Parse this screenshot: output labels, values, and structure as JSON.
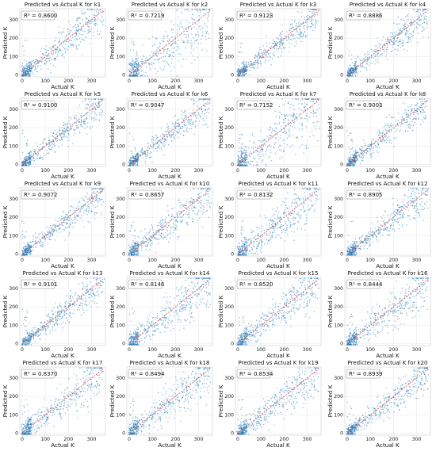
{
  "figure": {
    "layout": {
      "rows": 5,
      "cols": 4
    }
  },
  "chart_data": [
    {
      "type": "scatter",
      "title": "Predicted vs Actual K for k1",
      "xlabel": "Actual K",
      "ylabel": "Predicted K",
      "annotation": "R² = 0.8600",
      "r2": 0.86,
      "xlim": [
        -10,
        360
      ],
      "ylim": [
        -10,
        360
      ],
      "xticks": [
        0,
        100,
        200,
        300
      ],
      "yticks": [
        0,
        100,
        200,
        300
      ],
      "grid": true,
      "reference_line": "y=x",
      "colors": {
        "points": "#1f77b4",
        "reference": "#e05050"
      }
    },
    {
      "type": "scatter",
      "title": "Predicted vs Actual K for k2",
      "xlabel": "Actual K",
      "ylabel": "Predicted K",
      "annotation": "R² = 0.7219",
      "r2": 0.7219,
      "xlim": [
        -10,
        360
      ],
      "ylim": [
        -10,
        360
      ],
      "xticks": [
        0,
        100,
        200,
        300
      ],
      "yticks": [
        0,
        100,
        200,
        300
      ],
      "grid": true,
      "reference_line": "y=x",
      "colors": {
        "points": "#1f77b4",
        "reference": "#e05050"
      }
    },
    {
      "type": "scatter",
      "title": "Predicted vs Actual K for k3",
      "xlabel": "Actual K",
      "ylabel": "Predicted K",
      "annotation": "R² = 0.9123",
      "r2": 0.9123,
      "xlim": [
        -10,
        360
      ],
      "ylim": [
        -10,
        360
      ],
      "xticks": [
        0,
        100,
        200,
        300
      ],
      "yticks": [
        0,
        100,
        200,
        300
      ],
      "grid": true,
      "reference_line": "y=x",
      "colors": {
        "points": "#1f77b4",
        "reference": "#e05050"
      }
    },
    {
      "type": "scatter",
      "title": "Predicted vs Actual K for k4",
      "xlabel": "Actual K",
      "ylabel": "Predicted K",
      "annotation": "R² = 0.8886",
      "r2": 0.8886,
      "xlim": [
        -10,
        360
      ],
      "ylim": [
        -10,
        360
      ],
      "xticks": [
        0,
        100,
        200,
        300
      ],
      "yticks": [
        0,
        100,
        200,
        300
      ],
      "grid": true,
      "reference_line": "y=x",
      "colors": {
        "points": "#1f77b4",
        "reference": "#e05050"
      }
    },
    {
      "type": "scatter",
      "title": "Predicted vs Actual K for k5",
      "xlabel": "Actual K",
      "ylabel": "Predicted K",
      "annotation": "R² = 0.9100",
      "r2": 0.91,
      "xlim": [
        -10,
        360
      ],
      "ylim": [
        -10,
        360
      ],
      "xticks": [
        0,
        100,
        200,
        300
      ],
      "yticks": [
        0,
        100,
        200,
        300
      ],
      "grid": true,
      "reference_line": "y=x",
      "colors": {
        "points": "#1f77b4",
        "reference": "#e05050"
      }
    },
    {
      "type": "scatter",
      "title": "Predicted vs Actual K for k6",
      "xlabel": "Actual K",
      "ylabel": "Predicted K",
      "annotation": "R² = 0.9047",
      "r2": 0.9047,
      "xlim": [
        -10,
        360
      ],
      "ylim": [
        -10,
        360
      ],
      "xticks": [
        0,
        100,
        200,
        300
      ],
      "yticks": [
        0,
        100,
        200,
        300
      ],
      "grid": true,
      "reference_line": "y=x",
      "colors": {
        "points": "#1f77b4",
        "reference": "#e05050"
      }
    },
    {
      "type": "scatter",
      "title": "Predicted vs Actual K for k7",
      "xlabel": "Actual K",
      "ylabel": "Predicted K",
      "annotation": "R² = 0.7152",
      "r2": 0.7152,
      "xlim": [
        -10,
        360
      ],
      "ylim": [
        -10,
        360
      ],
      "xticks": [
        0,
        100,
        200,
        300
      ],
      "yticks": [
        0,
        100,
        200,
        300
      ],
      "grid": true,
      "reference_line": "y=x",
      "colors": {
        "points": "#1f77b4",
        "reference": "#e05050"
      }
    },
    {
      "type": "scatter",
      "title": "Predicted vs Actual K for k8",
      "xlabel": "Actual K",
      "ylabel": "Predicted K",
      "annotation": "R² = 0.9003",
      "r2": 0.9003,
      "xlim": [
        -10,
        360
      ],
      "ylim": [
        -10,
        360
      ],
      "xticks": [
        0,
        100,
        200,
        300
      ],
      "yticks": [
        0,
        100,
        200,
        300
      ],
      "grid": true,
      "reference_line": "y=x",
      "colors": {
        "points": "#1f77b4",
        "reference": "#e05050"
      }
    },
    {
      "type": "scatter",
      "title": "Predicted vs Actual K for k9",
      "xlabel": "Actual K",
      "ylabel": "Predicted K",
      "annotation": "R² = 0.9072",
      "r2": 0.9072,
      "xlim": [
        -10,
        360
      ],
      "ylim": [
        -10,
        360
      ],
      "xticks": [
        0,
        100,
        200,
        300
      ],
      "yticks": [
        0,
        100,
        200,
        300
      ],
      "grid": true,
      "reference_line": "y=x",
      "colors": {
        "points": "#1f77b4",
        "reference": "#e05050"
      }
    },
    {
      "type": "scatter",
      "title": "Predicted vs Actual K for k10",
      "xlabel": "Actual K",
      "ylabel": "Predicted K",
      "annotation": "R² = 0.8657",
      "r2": 0.8657,
      "xlim": [
        -10,
        360
      ],
      "ylim": [
        -10,
        360
      ],
      "xticks": [
        0,
        100,
        200,
        300
      ],
      "yticks": [
        0,
        100,
        200,
        300
      ],
      "grid": true,
      "reference_line": "y=x",
      "colors": {
        "points": "#1f77b4",
        "reference": "#e05050"
      }
    },
    {
      "type": "scatter",
      "title": "Predicted vs Actual K for k11",
      "xlabel": "Actual K",
      "ylabel": "Predicted K",
      "annotation": "R² = 0.8132",
      "r2": 0.8132,
      "xlim": [
        -10,
        360
      ],
      "ylim": [
        -10,
        360
      ],
      "xticks": [
        0,
        100,
        200,
        300
      ],
      "yticks": [
        0,
        100,
        200,
        300
      ],
      "grid": true,
      "reference_line": "y=x",
      "colors": {
        "points": "#1f77b4",
        "reference": "#e05050"
      }
    },
    {
      "type": "scatter",
      "title": "Predicted vs Actual K for k12",
      "xlabel": "Actual K",
      "ylabel": "Predicted K",
      "annotation": "R² = 0.8905",
      "r2": 0.8905,
      "xlim": [
        -10,
        360
      ],
      "ylim": [
        -10,
        360
      ],
      "xticks": [
        0,
        100,
        200,
        300
      ],
      "yticks": [
        0,
        100,
        200,
        300
      ],
      "grid": true,
      "reference_line": "y=x",
      "colors": {
        "points": "#1f77b4",
        "reference": "#e05050"
      }
    },
    {
      "type": "scatter",
      "title": "Predicted vs Actual K for k13",
      "xlabel": "Actual K",
      "ylabel": "Predicted K",
      "annotation": "R² = 0.9101",
      "r2": 0.9101,
      "xlim": [
        -10,
        360
      ],
      "ylim": [
        -10,
        360
      ],
      "xticks": [
        0,
        100,
        200,
        300
      ],
      "yticks": [
        0,
        100,
        200,
        300
      ],
      "grid": true,
      "reference_line": "y=x",
      "colors": {
        "points": "#1f77b4",
        "reference": "#e05050"
      }
    },
    {
      "type": "scatter",
      "title": "Predicted vs Actual K for k14",
      "xlabel": "Actual K",
      "ylabel": "Predicted K",
      "annotation": "R² = 0.8146",
      "r2": 0.8146,
      "xlim": [
        -10,
        360
      ],
      "ylim": [
        -10,
        360
      ],
      "xticks": [
        0,
        100,
        200,
        300
      ],
      "yticks": [
        0,
        100,
        200,
        300
      ],
      "grid": true,
      "reference_line": "y=x",
      "colors": {
        "points": "#1f77b4",
        "reference": "#e05050"
      }
    },
    {
      "type": "scatter",
      "title": "Predicted vs Actual K for k15",
      "xlabel": "Actual K",
      "ylabel": "Predicted K",
      "annotation": "R² = 0.8520",
      "r2": 0.852,
      "xlim": [
        -10,
        360
      ],
      "ylim": [
        -10,
        360
      ],
      "xticks": [
        0,
        100,
        200,
        300
      ],
      "yticks": [
        0,
        100,
        200,
        300
      ],
      "grid": true,
      "reference_line": "y=x",
      "colors": {
        "points": "#1f77b4",
        "reference": "#e05050"
      }
    },
    {
      "type": "scatter",
      "title": "Predicted vs Actual K for k16",
      "xlabel": "Actual K",
      "ylabel": "Predicted K",
      "annotation": "R² = 0.8444",
      "r2": 0.8444,
      "xlim": [
        -10,
        360
      ],
      "ylim": [
        -10,
        360
      ],
      "xticks": [
        0,
        100,
        200,
        300
      ],
      "yticks": [
        0,
        100,
        200,
        300
      ],
      "grid": true,
      "reference_line": "y=x",
      "colors": {
        "points": "#1f77b4",
        "reference": "#e05050"
      }
    },
    {
      "type": "scatter",
      "title": "Predicted vs Actual K for k17",
      "xlabel": "Actual K",
      "ylabel": "Predicted K",
      "annotation": "R² = 0.8370",
      "r2": 0.837,
      "xlim": [
        -10,
        360
      ],
      "ylim": [
        -10,
        360
      ],
      "xticks": [
        0,
        100,
        200,
        300
      ],
      "yticks": [
        0,
        100,
        200,
        300
      ],
      "grid": true,
      "reference_line": "y=x",
      "colors": {
        "points": "#1f77b4",
        "reference": "#e05050"
      }
    },
    {
      "type": "scatter",
      "title": "Predicted vs Actual K for k18",
      "xlabel": "Actual K",
      "ylabel": "Predicted K",
      "annotation": "R² = 0.8494",
      "r2": 0.8494,
      "xlim": [
        -10,
        360
      ],
      "ylim": [
        -10,
        360
      ],
      "xticks": [
        0,
        100,
        200,
        300
      ],
      "yticks": [
        0,
        100,
        200,
        300
      ],
      "grid": true,
      "reference_line": "y=x",
      "colors": {
        "points": "#1f77b4",
        "reference": "#e05050"
      }
    },
    {
      "type": "scatter",
      "title": "Predicted vs Actual K for k19",
      "xlabel": "Actual K",
      "ylabel": "Predicted K",
      "annotation": "R² = 0.8534",
      "r2": 0.8534,
      "xlim": [
        -10,
        360
      ],
      "ylim": [
        -10,
        360
      ],
      "xticks": [
        0,
        100,
        200,
        300
      ],
      "yticks": [
        0,
        100,
        200,
        300
      ],
      "grid": true,
      "reference_line": "y=x",
      "colors": {
        "points": "#1f77b4",
        "reference": "#e05050"
      }
    },
    {
      "type": "scatter",
      "title": "Predicted vs Actual K for k20",
      "xlabel": "Actual K",
      "ylabel": "Predicted K",
      "annotation": "R² = 0.8939",
      "r2": 0.8939,
      "xlim": [
        -10,
        360
      ],
      "ylim": [
        -10,
        360
      ],
      "xticks": [
        0,
        100,
        200,
        300
      ],
      "yticks": [
        0,
        100,
        200,
        300
      ],
      "grid": true,
      "reference_line": "y=x",
      "colors": {
        "points": "#1f77b4",
        "reference": "#e05050"
      }
    }
  ]
}
